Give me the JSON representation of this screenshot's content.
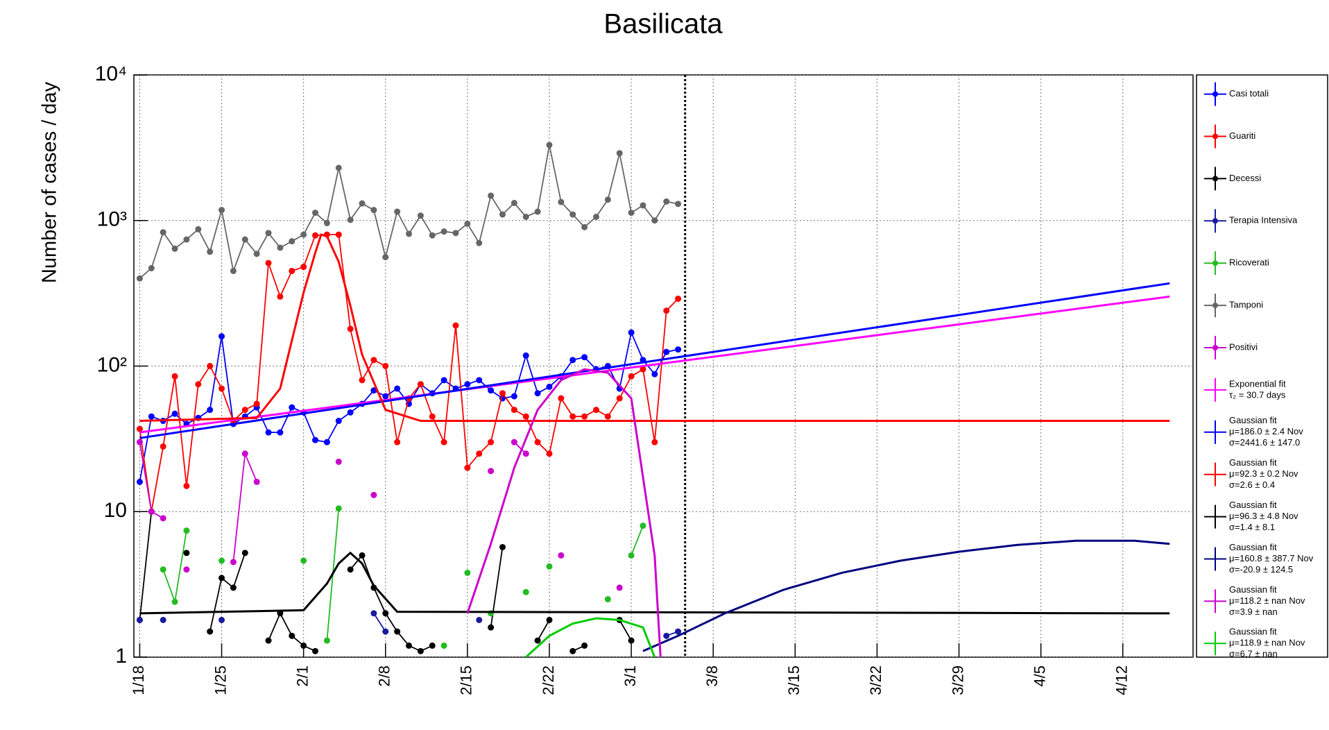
{
  "chart_data": {
    "type": "line",
    "title": "Basilicata",
    "y_label": "Number of cases / day",
    "log_y": true,
    "grid": true,
    "legend": "right",
    "xlim": [
      -0.5,
      90
    ],
    "ylim": [
      1,
      10000
    ],
    "xticks": [
      {
        "value": 0,
        "label": "1/18"
      },
      {
        "value": 7,
        "label": "1/25"
      },
      {
        "value": 14,
        "label": "2/1"
      },
      {
        "value": 21,
        "label": "2/8"
      },
      {
        "value": 28,
        "label": "2/15"
      },
      {
        "value": 35,
        "label": "2/22"
      },
      {
        "value": 42,
        "label": "3/1"
      },
      {
        "value": 49,
        "label": "3/8"
      },
      {
        "value": 56,
        "label": "3/15"
      },
      {
        "value": 63,
        "label": "3/22"
      },
      {
        "value": 70,
        "label": "3/29"
      },
      {
        "value": 77,
        "label": "4/5"
      },
      {
        "value": 84,
        "label": "4/12"
      }
    ],
    "yticks": [
      1,
      10,
      {
        "value": 100,
        "label": "10²"
      },
      {
        "value": 1000,
        "label": "10³"
      },
      {
        "value": 10000,
        "label": "10⁴"
      }
    ],
    "today_x": 46.6,
    "x": [
      0,
      1,
      2,
      3,
      4,
      5,
      6,
      7,
      8,
      9,
      10,
      11,
      12,
      13,
      14,
      15,
      16,
      17,
      18,
      19,
      20,
      21,
      22,
      23,
      24,
      25,
      26,
      27,
      28,
      29,
      30,
      31,
      32,
      33,
      34,
      35,
      36,
      37,
      38,
      39,
      40,
      41,
      42,
      43,
      44,
      45,
      46
    ],
    "series": [
      {
        "name": "Casi totali",
        "color": "#0000ff",
        "values": [
          16,
          45,
          42,
          47,
          40,
          44,
          50,
          160,
          40,
          45,
          52,
          35,
          35,
          52,
          48,
          31,
          30,
          42,
          48,
          55,
          68,
          62,
          70,
          55,
          75,
          65,
          80,
          70,
          75,
          80,
          68,
          60,
          62,
          118,
          65,
          72,
          85,
          110,
          115,
          95,
          100,
          70,
          170,
          110,
          88,
          125,
          130
        ]
      },
      {
        "name": "Guariti",
        "color": "#ff0000",
        "values": [
          37,
          10,
          28,
          85,
          15,
          75,
          100,
          70,
          42,
          50,
          55,
          510,
          300,
          450,
          480,
          790,
          800,
          800,
          180,
          80,
          110,
          100,
          30,
          60,
          75,
          45,
          30,
          190,
          20,
          25,
          30,
          65,
          50,
          45,
          30,
          25,
          60,
          45,
          45,
          50,
          45,
          60,
          85,
          95,
          30,
          240,
          290
        ]
      },
      {
        "name": "Decessi",
        "color": "#000000",
        "values": [
          1.8,
          10,
          null,
          null,
          5.2,
          null,
          1.5,
          3.5,
          3,
          5.2,
          null,
          1.3,
          2,
          1.4,
          1.2,
          1.1,
          null,
          null,
          4,
          5,
          3,
          2,
          1.5,
          1.2,
          1.1,
          1.2,
          null,
          null,
          null,
          null,
          1.6,
          5.7,
          null,
          null,
          1.3,
          1.8,
          null,
          1.1,
          1.2,
          null,
          null,
          1.8,
          1.3,
          null,
          null,
          null,
          null
        ]
      },
      {
        "name": "Terapia Intensiva",
        "color": "#1a1a9e",
        "values": [
          1.8,
          null,
          1.8,
          null,
          null,
          null,
          null,
          1.8,
          null,
          null,
          null,
          null,
          null,
          null,
          null,
          null,
          null,
          null,
          null,
          null,
          2,
          1.5,
          null,
          null,
          null,
          null,
          null,
          null,
          null,
          1.8,
          null,
          null,
          null,
          null,
          null,
          null,
          null,
          null,
          null,
          null,
          null,
          null,
          null,
          null,
          null,
          1.4,
          1.5
        ]
      },
      {
        "name": "Ricoverati",
        "color": "#22bb22",
        "values": [
          null,
          null,
          4,
          2.4,
          7.4,
          null,
          null,
          4.6,
          null,
          null,
          null,
          null,
          null,
          null,
          4.6,
          null,
          1.3,
          10.5,
          null,
          null,
          null,
          null,
          null,
          null,
          null,
          null,
          1.2,
          null,
          3.8,
          null,
          2,
          null,
          null,
          2.8,
          null,
          4.2,
          null,
          null,
          null,
          null,
          2.5,
          null,
          5,
          8,
          null,
          null,
          null
        ]
      },
      {
        "name": "Tamponi",
        "color": "#666666",
        "values": [
          400,
          470,
          830,
          640,
          740,
          870,
          610,
          1180,
          450,
          740,
          590,
          820,
          650,
          720,
          800,
          1130,
          960,
          2300,
          1010,
          1310,
          1180,
          560,
          1150,
          810,
          1080,
          790,
          840,
          820,
          950,
          700,
          1480,
          1100,
          1320,
          1060,
          1150,
          3300,
          1340,
          1100,
          900,
          1060,
          1390,
          2900,
          1130,
          1270,
          1000,
          1350,
          1300
        ]
      },
      {
        "name": "Positivi",
        "color": "#cc00cc",
        "values": [
          30,
          10,
          9,
          null,
          4,
          null,
          null,
          null,
          4.5,
          25,
          16,
          null,
          null,
          null,
          null,
          null,
          null,
          22,
          null,
          null,
          13,
          null,
          null,
          null,
          null,
          null,
          null,
          null,
          null,
          null,
          19,
          null,
          30,
          25,
          null,
          null,
          5,
          null,
          null,
          null,
          null,
          3,
          null,
          null,
          null,
          null,
          null
        ]
      },
      {
        "name": "Exponential fit",
        "color": "#ff00ff",
        "fit": true,
        "legend_detail": [
          "τ₂ = 30.7 days"
        ],
        "x": [
          0,
          88
        ],
        "values": [
          35,
          300
        ]
      },
      {
        "name": "Gaussian fit",
        "color": "#0000ff",
        "fit": true,
        "legend_detail": [
          "μ=186.0 ± 2.4 Nov",
          "σ=2441.6 ± 147.0"
        ],
        "x": [
          0,
          88
        ],
        "values": [
          32,
          370
        ]
      },
      {
        "name": "Gaussian fit",
        "color": "#ff0000",
        "fit": true,
        "legend_detail": [
          "μ=92.3 ± 0.2 Nov",
          "σ=2.6 ± 0.4"
        ],
        "x": [
          0,
          10,
          12,
          13,
          14,
          15,
          15.5,
          16,
          17,
          18,
          19,
          21,
          24,
          88
        ],
        "values": [
          42,
          44,
          70,
          150,
          320,
          600,
          800,
          780,
          520,
          260,
          120,
          50,
          42,
          42
        ]
      },
      {
        "name": "Gaussian fit",
        "color": "#000000",
        "fit": true,
        "legend_detail": [
          "μ=96.3 ± 4.8 Nov",
          "σ=1.4 ± 8.1"
        ],
        "x": [
          0,
          14,
          16,
          17,
          18,
          19,
          20,
          22,
          88
        ],
        "values": [
          2,
          2.1,
          3.2,
          4.4,
          5.2,
          4.4,
          3.1,
          2.05,
          2
        ]
      },
      {
        "name": "Gaussian fit",
        "color": "#000080",
        "fit": true,
        "legend_detail": [
          "μ=160.8 ± 387.7 Nov",
          "σ=-20.9 ± 124.5"
        ],
        "x": [
          43,
          46,
          50,
          55,
          60,
          65,
          70,
          75,
          80,
          85,
          88
        ],
        "values": [
          1.1,
          1.4,
          2.0,
          2.9,
          3.8,
          4.6,
          5.3,
          5.9,
          6.3,
          6.3,
          6.0
        ]
      },
      {
        "name": "Gaussian fit",
        "color": "#cc00cc",
        "fit": true,
        "legend_detail": [
          "μ=118.2 ± nan Nov",
          "σ=3.9 ± nan"
        ],
        "x": [
          28,
          30,
          32,
          34,
          36,
          38,
          40,
          42,
          44,
          44.5
        ],
        "values": [
          2,
          6,
          20,
          50,
          80,
          95,
          90,
          60,
          5,
          1
        ]
      },
      {
        "name": "Gaussian fit",
        "color": "#00cc00",
        "fit": true,
        "legend_detail": [
          "μ=118.9 ± nan Nov",
          "σ=6.7 ± nan"
        ],
        "x": [
          33,
          35,
          37,
          39,
          41,
          43,
          44
        ],
        "values": [
          1,
          1.4,
          1.7,
          1.85,
          1.8,
          1.6,
          1
        ]
      }
    ]
  }
}
